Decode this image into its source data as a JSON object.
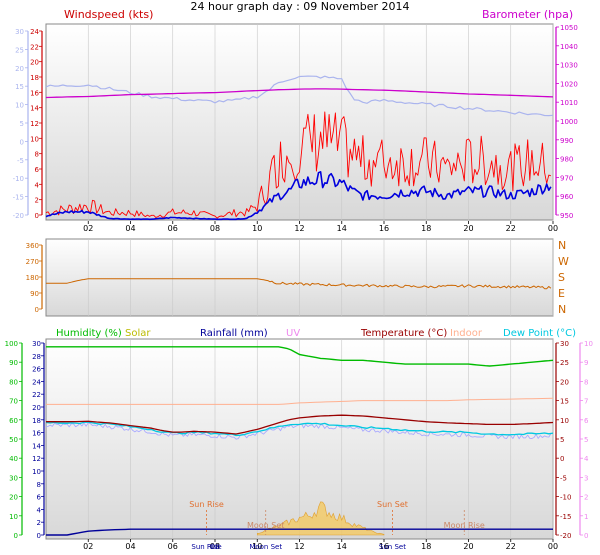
{
  "title": "24 hour graph day : 09 November 2014",
  "colors": {
    "wind": "#ff0000",
    "wind_dark": "#0000dd",
    "baro": "#cc00cc",
    "temp_axis_c": "#aab4ee",
    "direction": "#cc6600",
    "humidity": "#00bb00",
    "solar": "#bbbb00",
    "rainfall": "#000099",
    "uv": "#ee88ee",
    "temperature": "#990000",
    "indoor": "#ffb090",
    "dewpoint": "#00c8e0",
    "apparent": "#aaaaff",
    "sun": "#e07030",
    "moon": "#cc8866",
    "plot_bg_top": "#ffffff",
    "plot_bg_bottom": "#dcdcdc"
  },
  "chart_data": [
    {
      "type": "line",
      "name": "wind-barometer",
      "x_ticks": [
        "02",
        "04",
        "06",
        "08",
        "10",
        "12",
        "14",
        "16",
        "18",
        "20",
        "22",
        "00"
      ],
      "legend": {
        "wind": "Windspeed (kts)",
        "baro": "Barometer (hpa)"
      },
      "left_axis_blue": {
        "range": [
          -20,
          30
        ],
        "ticks": [
          "30",
          "25",
          "20",
          "15",
          "10",
          "5",
          "0",
          "-5",
          "-10",
          "-15",
          "-20"
        ]
      },
      "left_axis_red": {
        "range": [
          0,
          24
        ],
        "ticks": [
          "24",
          "22",
          "20",
          "18",
          "16",
          "14",
          "12",
          "10",
          "8",
          "6",
          "4",
          "2",
          "0"
        ]
      },
      "right_axis": {
        "range": [
          950,
          1050
        ],
        "ticks": [
          "1050",
          "1040",
          "1030",
          "1020",
          "1010",
          "1000",
          "990",
          "980",
          "970",
          "960",
          "950"
        ]
      },
      "hours": [
        0,
        1,
        2,
        3,
        4,
        5,
        6,
        7,
        8,
        9,
        9.5,
        10,
        10.5,
        11,
        11.5,
        12,
        13,
        14,
        14.5,
        15,
        16,
        17,
        18,
        19,
        20,
        21,
        22,
        23,
        24
      ],
      "barometer": [
        1012.5,
        1012.8,
        1013,
        1013.5,
        1014,
        1014.2,
        1014.5,
        1014.8,
        1015,
        1015.5,
        1015.8,
        1016,
        1016.2,
        1016.5,
        1016.6,
        1016.8,
        1016.9,
        1016.8,
        1016.6,
        1016.5,
        1016.2,
        1015.8,
        1015.3,
        1014.8,
        1014.3,
        1014,
        1013.6,
        1013.2,
        1012.8
      ],
      "temperature_c": [
        14,
        14.3,
        14.5,
        13.5,
        12.5,
        11.5,
        11,
        10.5,
        10.2,
        10.5,
        11,
        11.5,
        13,
        15,
        16,
        16.5,
        16.5,
        16,
        11,
        10,
        10.5,
        10,
        9.5,
        9,
        8.5,
        8,
        7.5,
        7,
        6.8
      ],
      "wind_gust_kts": [
        1,
        1.5,
        2,
        1,
        1,
        0.5,
        1,
        1,
        0.5,
        1,
        1,
        2,
        5,
        8,
        9,
        10,
        11,
        10,
        9,
        8,
        8,
        8,
        8,
        7,
        8,
        8,
        7,
        8,
        7
      ],
      "wind_avg_kts": [
        0.5,
        1,
        1,
        0.2,
        0.1,
        0.1,
        0.3,
        0.2,
        0.1,
        0.1,
        0.2,
        1,
        2,
        3,
        3.5,
        4.5,
        5,
        4.5,
        3.5,
        3,
        3,
        3.5,
        3.5,
        3,
        3.5,
        3.5,
        3,
        3.5,
        4.5
      ]
    },
    {
      "type": "line",
      "name": "wind-direction",
      "x_ticks": [
        "02",
        "04",
        "06",
        "08",
        "10",
        "12",
        "14",
        "16",
        "18",
        "20",
        "22",
        "00"
      ],
      "left_axis": {
        "range": [
          0,
          360
        ],
        "ticks": [
          "360",
          "270",
          "180",
          "90",
          "0"
        ]
      },
      "right_axis_labels": [
        "N",
        "W",
        "S",
        "E",
        "N"
      ],
      "hours": [
        0,
        1,
        1.5,
        2,
        4,
        6,
        8,
        10,
        10.5,
        11,
        12,
        14,
        16,
        18,
        20,
        22,
        24
      ],
      "direction_deg": [
        145,
        145,
        160,
        170,
        170,
        170,
        170,
        170,
        160,
        145,
        140,
        135,
        130,
        125,
        130,
        125,
        120
      ]
    },
    {
      "type": "line",
      "name": "temperature-humidity",
      "x_ticks": [
        "02",
        "04",
        "06",
        "08",
        "10",
        "12",
        "14",
        "16",
        "18",
        "20",
        "22",
        "00"
      ],
      "legend": {
        "humidity": "Humidity (%)",
        "solar": "Solar",
        "rainfall": "Rainfall (mm)",
        "uv": "UV",
        "temperature": "Temperature (°C)",
        "indoor": "Indoor",
        "dewpoint": "Dew Point (°C)"
      },
      "axis_humidity": {
        "range": [
          0,
          100
        ],
        "ticks": [
          "100",
          "90",
          "80",
          "70",
          "60",
          "50",
          "40",
          "30",
          "20",
          "10",
          "0"
        ]
      },
      "axis_rain": {
        "range": [
          0,
          30
        ],
        "ticks": [
          "30",
          "28",
          "26",
          "24",
          "22",
          "20",
          "18",
          "16",
          "14",
          "12",
          "10",
          "8",
          "6",
          "4",
          "2",
          "0"
        ]
      },
      "axis_temp": {
        "range": [
          -20,
          30
        ],
        "ticks": [
          "30",
          "25",
          "20",
          "15",
          "10",
          "5",
          "0",
          "-5",
          "-10",
          "-15",
          "-20"
        ]
      },
      "axis_uv": {
        "range": [
          0,
          10
        ],
        "ticks": [
          "10",
          "9",
          "8",
          "7",
          "6",
          "5",
          "4",
          "3",
          "2",
          "1",
          "0"
        ]
      },
      "hours": [
        0,
        1,
        2,
        3,
        4,
        5,
        5.5,
        6,
        6.5,
        7,
        8,
        9,
        10,
        11,
        11.5,
        12,
        13,
        14,
        15,
        16,
        17,
        18,
        19,
        20,
        21,
        22,
        23,
        24
      ],
      "humidity_pct": [
        98,
        98,
        98,
        98,
        98,
        98,
        98,
        98,
        98,
        98,
        98,
        98,
        98,
        98,
        97,
        94,
        92,
        91,
        91,
        90,
        89,
        89,
        89,
        89,
        88,
        89,
        90,
        91
      ],
      "temperature_c": [
        9.5,
        9.5,
        9.6,
        9.2,
        8.5,
        7.8,
        7.2,
        6.8,
        6.8,
        7,
        6.8,
        6.3,
        7.5,
        9.2,
        10,
        10.5,
        11,
        11.2,
        11,
        10.5,
        10,
        9.5,
        9.2,
        9,
        8.8,
        8.8,
        9,
        9.3
      ],
      "dewpoint_c": [
        9.2,
        9.2,
        9.3,
        8.9,
        8.2,
        7.5,
        6.9,
        6.5,
        6.6,
        6.7,
        6.5,
        6,
        7,
        8.2,
        8.8,
        9,
        9,
        8.5,
        8,
        7.8,
        7.3,
        7,
        6.8,
        6.7,
        6.3,
        6.2,
        6.3,
        6.5
      ],
      "indoor_c": [
        14,
        14,
        14,
        14,
        14,
        14,
        14,
        14,
        14,
        14,
        14,
        14,
        14,
        14,
        14.2,
        14.4,
        14.6,
        14.8,
        15,
        15,
        15,
        15,
        15,
        15.2,
        15.3,
        15.4,
        15.5,
        15.6
      ],
      "rainfall_mm": [
        0,
        0,
        0.6,
        0.8,
        0.9,
        0.9,
        0.9,
        0.9,
        0.9,
        0.9,
        0.9,
        0.9,
        0.9,
        0.9,
        0.9,
        0.9,
        0.9,
        0.9,
        0.9,
        0.9,
        0.9,
        0.9,
        0.9,
        0.9,
        0.9,
        0.9,
        0.9,
        0.9
      ],
      "solar_hours": [
        10,
        10.5,
        11,
        11.5,
        12,
        12.5,
        13,
        13.5,
        14,
        14.5,
        15,
        15.5,
        16
      ],
      "solar_relative": [
        0.05,
        0.2,
        0.3,
        0.45,
        0.6,
        0.7,
        1.0,
        0.75,
        0.6,
        0.4,
        0.25,
        0.1,
        0.02
      ],
      "uv_index": [
        0,
        0,
        0,
        0,
        0,
        0,
        0,
        0,
        0,
        0,
        0,
        0,
        0
      ],
      "events": [
        {
          "label": "Sun Rise",
          "hour": 7.6,
          "kind": "sun"
        },
        {
          "label": "Sun Set",
          "hour": 16.4,
          "kind": "sun"
        },
        {
          "label": "Moon Set",
          "hour": 10.4,
          "kind": "moon"
        },
        {
          "label": "Moon Rise",
          "hour": 19.8,
          "kind": "moon"
        }
      ],
      "bottom_extra_ticks": [
        {
          "label": "Sun Rise",
          "hour": 7.6
        },
        {
          "label": "08",
          "hour": 8.0
        },
        {
          "label": "Moon Set",
          "hour": 10.4
        },
        {
          "label": "Sun Set",
          "hour": 16.4
        }
      ]
    }
  ]
}
